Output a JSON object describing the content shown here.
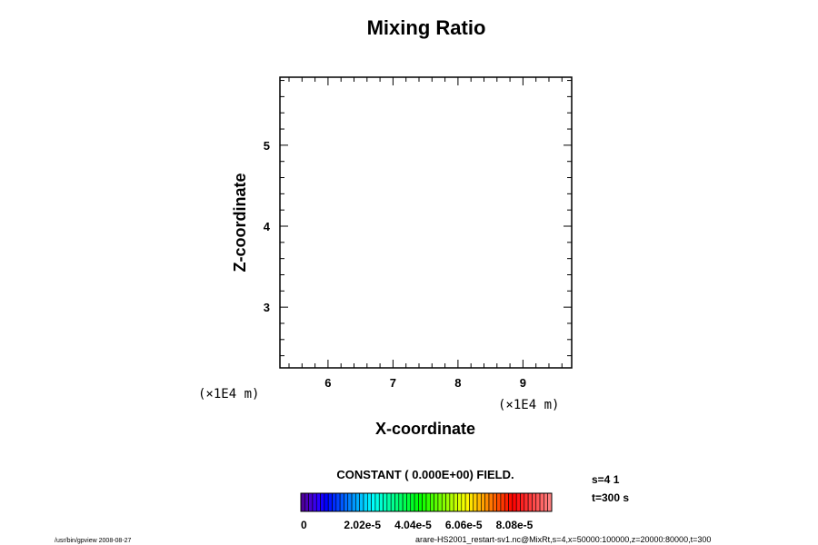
{
  "chart_data": {
    "type": "heatmap",
    "title": "Mixing Ratio",
    "xlabel": "X-coordinate",
    "ylabel": "Z-coordinate",
    "x_unit": "(×1E4  m)",
    "y_unit": "(×1E4  m)",
    "xlim": [
      5.26,
      9.75
    ],
    "ylim": [
      2.25,
      5.84
    ],
    "xticks": [
      6,
      7,
      8,
      9
    ],
    "xtick_labels": [
      "6",
      "7",
      "8",
      "9"
    ],
    "yticks": [
      3,
      4,
      5
    ],
    "ytick_labels": [
      "3",
      "4",
      "5"
    ],
    "x_minor_step": 0.2,
    "y_minor_step": 0.2,
    "field_message": "CONSTANT ( 0.000E+00) FIELD.",
    "colorbar": {
      "min": 0,
      "max": 0.0001,
      "n_colors": 64,
      "tick_labels": [
        "0",
        "2.02e-5",
        "4.04e-5",
        "6.06e-5",
        "8.08e-5"
      ],
      "tick_values": [
        0,
        2.02e-05,
        4.04e-05,
        6.06e-05,
        8.08e-05
      ]
    },
    "info": [
      "s=4 1",
      "t=300 s"
    ],
    "footer_left": "/usr/bin/gpview 2008-08-27",
    "footer_right": "arare-HS2001_restart-sv1.nc@MixRt,s=4,x=50000:100000,z=20000:80000,t=300"
  }
}
